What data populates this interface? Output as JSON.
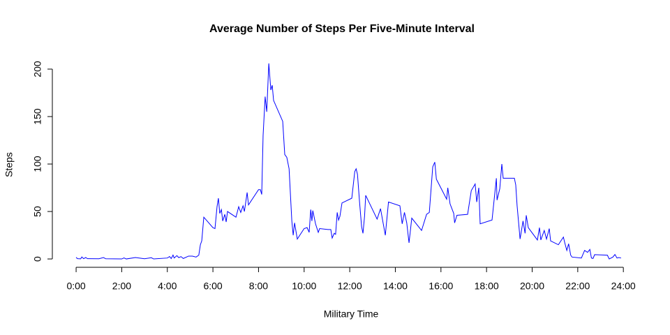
{
  "chart_data": {
    "type": "line",
    "title": "Average Number of Steps Per Five-Minute Interval",
    "x_label": "Military Time",
    "y_label": "Steps",
    "color": "#0000ff",
    "x": [
      0,
      0.06,
      0.2,
      0.25,
      0.33,
      0.42,
      0.5,
      1.0,
      1.2,
      1.3,
      2.0,
      2.1,
      2.2,
      2.6,
      3.0,
      3.3,
      3.4,
      4.0,
      4.1,
      4.17,
      4.25,
      4.3,
      4.42,
      4.5,
      4.6,
      4.7,
      4.93,
      5.1,
      5.26,
      5.38,
      5.45,
      5.51,
      5.6,
      6.0,
      6.09,
      6.18,
      6.24,
      6.3,
      6.37,
      6.43,
      6.52,
      6.58,
      6.64,
      7.01,
      7.13,
      7.22,
      7.32,
      7.38,
      7.5,
      7.56,
      8.0,
      8.08,
      8.14,
      8.2,
      8.29,
      8.36,
      8.45,
      8.54,
      8.6,
      8.66,
      9.06,
      9.15,
      9.24,
      9.34,
      9.46,
      9.52,
      9.58,
      9.7,
      10.0,
      10.13,
      10.22,
      10.29,
      10.34,
      10.38,
      10.5,
      10.62,
      10.68,
      11.05,
      11.17,
      11.23,
      11.32,
      11.38,
      11.45,
      11.51,
      11.57,
      11.66,
      12.09,
      12.22,
      12.28,
      12.34,
      12.43,
      12.52,
      12.58,
      12.65,
      12.7,
      13.2,
      13.35,
      13.56,
      13.7,
      14.2,
      14.3,
      14.4,
      14.5,
      14.6,
      14.72,
      15.15,
      15.37,
      15.49,
      15.64,
      15.73,
      15.8,
      16.25,
      16.3,
      16.4,
      16.56,
      16.6,
      16.7,
      17.17,
      17.33,
      17.5,
      17.57,
      17.66,
      17.72,
      18.24,
      18.37,
      18.43,
      18.46,
      18.58,
      18.67,
      18.73,
      19.22,
      19.28,
      19.34,
      19.47,
      19.6,
      19.69,
      19.74,
      19.83,
      20.23,
      20.32,
      20.38,
      20.53,
      20.63,
      20.75,
      20.81,
      21.15,
      21.37,
      21.43,
      21.52,
      21.6,
      21.69,
      21.75,
      22.16,
      22.3,
      22.43,
      22.53,
      22.6,
      22.67,
      22.74,
      23.3,
      23.38,
      23.54,
      23.63,
      23.72,
      23.8,
      23.9
    ],
    "values": [
      1.7,
      0.3,
      0.1,
      2.1,
      0.3,
      1.5,
      0.3,
      0.2,
      1.5,
      0.2,
      0,
      1.1,
      0,
      1.5,
      0.2,
      1.3,
      0,
      1,
      2.6,
      0.4,
      4.1,
      1,
      3.5,
      1.4,
      2.5,
      0.5,
      3,
      3,
      2,
      4,
      15,
      19,
      44,
      33,
      32,
      55,
      64,
      48,
      52,
      40,
      47,
      39,
      50,
      44,
      55,
      49,
      56,
      50,
      70,
      57,
      73,
      73,
      68,
      130,
      171,
      155,
      206,
      178,
      183,
      167,
      145,
      110,
      107,
      95,
      40,
      25,
      38,
      21,
      32,
      33,
      28,
      52,
      40,
      51,
      37,
      28,
      32,
      31,
      31,
      22,
      27,
      26,
      49,
      41,
      45,
      59,
      64,
      92,
      95,
      89,
      60,
      34,
      27,
      45,
      67,
      42,
      53,
      25,
      60,
      56,
      37,
      49,
      38,
      17,
      43,
      30,
      47,
      49,
      97,
      102,
      84,
      63,
      75,
      58,
      48,
      38,
      46,
      47,
      72,
      79,
      60,
      75,
      37,
      41,
      71,
      85,
      62,
      74,
      100,
      85,
      85,
      78,
      56,
      21,
      40,
      27,
      46,
      33,
      20,
      33,
      20,
      30,
      21,
      32,
      19,
      15,
      23,
      17,
      9,
      16,
      4,
      2,
      1,
      9,
      7,
      10,
      1,
      0.5,
      4.5,
      4,
      0,
      2,
      4.7,
      1,
      1.5,
      1
    ],
    "xlim": [
      -0.96,
      24.87
    ],
    "ylim": [
      -8.2,
      214.2
    ],
    "xticks": [
      {
        "value": 0,
        "label": "0:00"
      },
      {
        "value": 2,
        "label": "2:00"
      },
      {
        "value": 4,
        "label": "4:00"
      },
      {
        "value": 6,
        "label": "6:00"
      },
      {
        "value": 8,
        "label": "8:00"
      },
      {
        "value": 10,
        "label": "10:00"
      },
      {
        "value": 12,
        "label": "12:00"
      },
      {
        "value": 14,
        "label": "14:00"
      },
      {
        "value": 16,
        "label": "16:00"
      },
      {
        "value": 18,
        "label": "18:00"
      },
      {
        "value": 20,
        "label": "20:00"
      },
      {
        "value": 22,
        "label": "22:00"
      },
      {
        "value": 24,
        "label": "24:00"
      }
    ],
    "yticks": [
      0,
      50,
      100,
      150,
      200
    ]
  }
}
